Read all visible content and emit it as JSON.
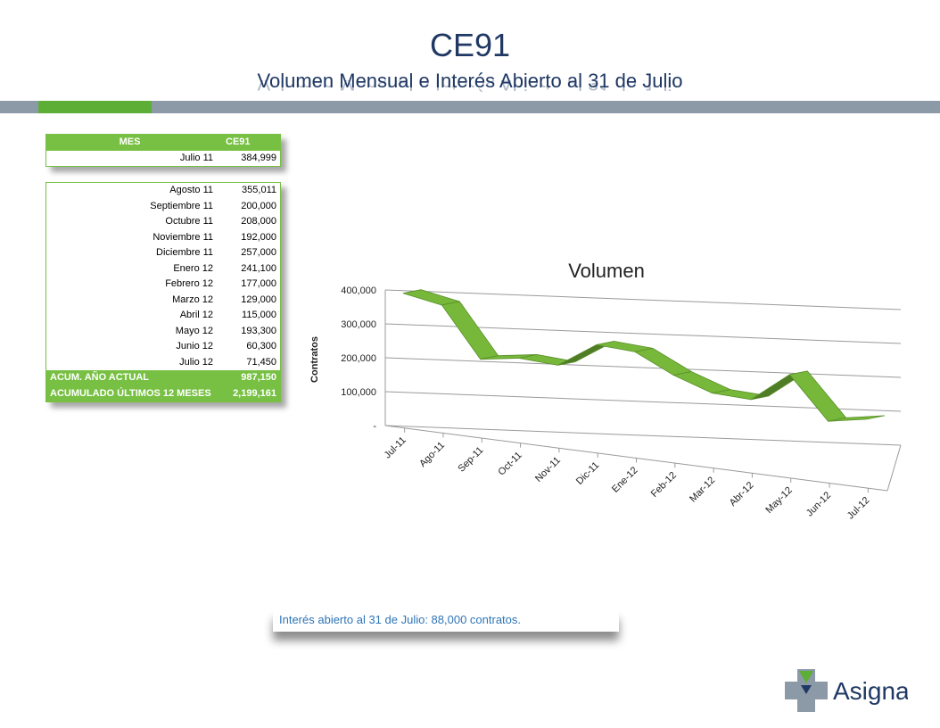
{
  "header": {
    "title": "CE91",
    "subtitle": "Volumen Mensual e Interés Abierto al 31 de Julio"
  },
  "table_top": {
    "header": {
      "col1": "MES",
      "col2": "CE91"
    },
    "rows": [
      {
        "mes": "Julio 11",
        "valor": "384,999"
      }
    ]
  },
  "table_main": {
    "rows": [
      {
        "mes": "Agosto 11",
        "valor": "355,011"
      },
      {
        "mes": "Septiembre 11",
        "valor": "200,000"
      },
      {
        "mes": "Octubre 11",
        "valor": "208,000"
      },
      {
        "mes": "Noviembre 11",
        "valor": "192,000"
      },
      {
        "mes": "Diciembre 11",
        "valor": "257,000"
      },
      {
        "mes": "Enero 12",
        "valor": "241,100"
      },
      {
        "mes": "Febrero 12",
        "valor": "177,000"
      },
      {
        "mes": "Marzo 12",
        "valor": "129,000"
      },
      {
        "mes": "Abril 12",
        "valor": "115,000"
      },
      {
        "mes": "Mayo 12",
        "valor": "193,300"
      },
      {
        "mes": "Junio 12",
        "valor": "60,300"
      },
      {
        "mes": "Julio 12",
        "valor": "71,450"
      }
    ],
    "totals": [
      {
        "label": "ACUM. AÑO ACTUAL",
        "valor": "987,150"
      },
      {
        "label": "ACUMULADO ÚLTIMOS 12 MESES",
        "valor": "2,199,161"
      }
    ]
  },
  "chart_data": {
    "type": "line",
    "title": "Volumen",
    "ylabel": "Contratos",
    "ylim": [
      0,
      400000
    ],
    "yticks": [
      "-",
      "100,000",
      "200,000",
      "300,000",
      "400,000"
    ],
    "categories": [
      "Jul-11",
      "Ago-11",
      "Sep-11",
      "Oct-11",
      "Nov-11",
      "Dic-11",
      "Ene-12",
      "Feb-12",
      "Mar-12",
      "Abr-12",
      "May-12",
      "Jun-12",
      "Jul-12"
    ],
    "series": [
      {
        "values": [
          384999,
          355011,
          200000,
          208000,
          192000,
          257000,
          241100,
          177000,
          129000,
          115000,
          193300,
          60300,
          71450
        ]
      }
    ],
    "colors": {
      "ribbon": "#77b83a",
      "ribbon_dark": "#4f7d26",
      "edge": "#5a8f2b"
    },
    "grid": true,
    "legend": "none"
  },
  "footer": {
    "note": "Interés abierto al 31 de Julio: 88,000 contratos."
  },
  "logo": {
    "name": "Asigna"
  }
}
